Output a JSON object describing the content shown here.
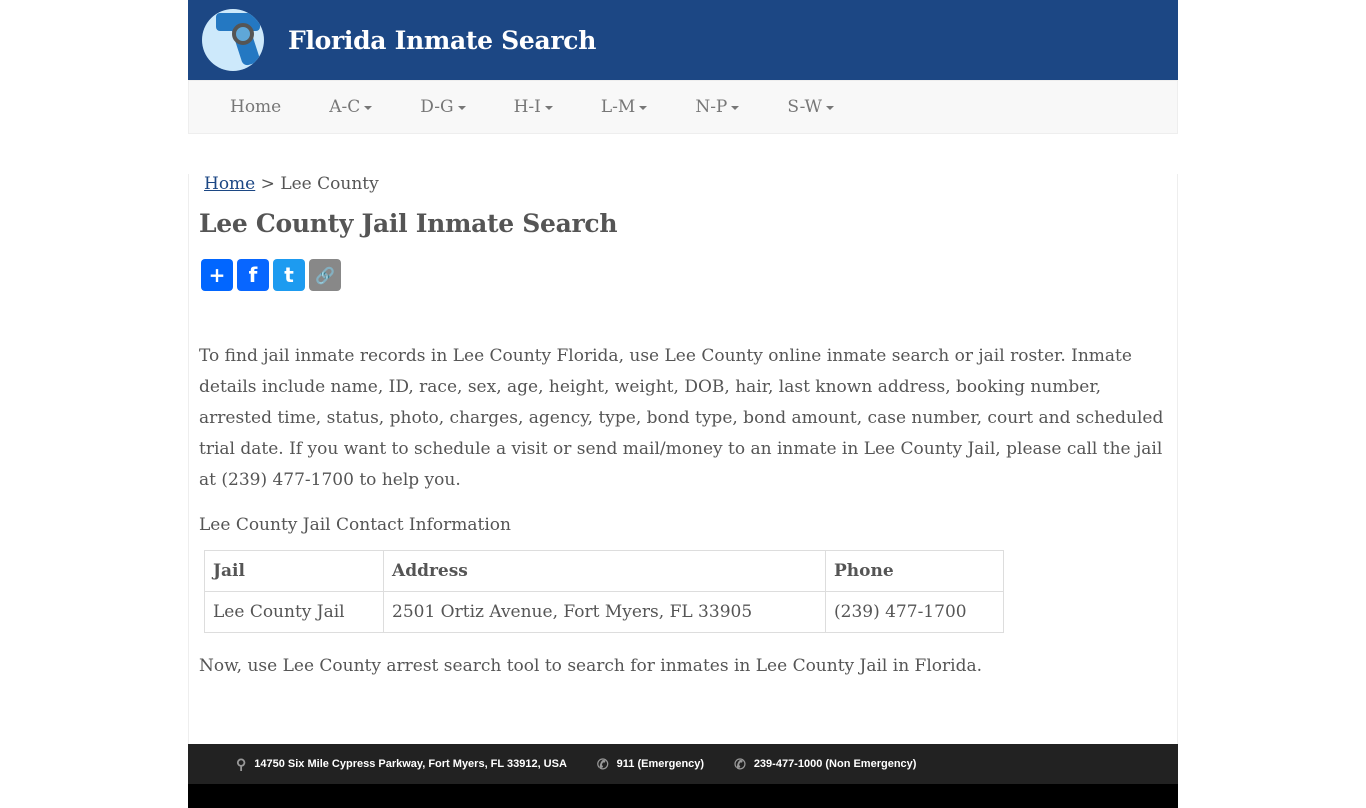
{
  "header": {
    "title": "Florida Inmate Search"
  },
  "nav": [
    {
      "label": "Home"
    },
    {
      "label": "A-C"
    },
    {
      "label": "D-G"
    },
    {
      "label": "H-I"
    },
    {
      "label": "L-M"
    },
    {
      "label": "N-P"
    },
    {
      "label": "S-W"
    }
  ],
  "breadcrumb": {
    "home": "Home",
    "sep": " > ",
    "current": "Lee County"
  },
  "page_title": "Lee County Jail Inmate Search",
  "share": [
    {
      "icon": "share-icon",
      "glyph": "+",
      "color": "#0166ff"
    },
    {
      "icon": "facebook-icon",
      "glyph": "f",
      "color": "#0866ff"
    },
    {
      "icon": "twitter-icon",
      "glyph": "t",
      "color": "#1d9bf0"
    },
    {
      "icon": "copy-link-icon",
      "glyph": "🔗",
      "color": "#888"
    }
  ],
  "intro": "To find jail inmate records in Lee County Florida, use Lee County online inmate search or jail roster. Inmate details include name, ID, race, sex, age, height, weight, DOB, hair, last known address, booking number, arrested time, status, photo, charges, agency, type, bond type, bond amount, case number, court and scheduled trial date. If you want to schedule a visit or send mail/money to an inmate in Lee County Jail, please call the jail at (239) 477-1700 to help you.",
  "contact_heading": "Lee County Jail Contact Information",
  "table": {
    "headers": [
      "Jail",
      "Address",
      "Phone"
    ],
    "rows": [
      [
        "Lee County Jail",
        "2501 Ortiz Avenue, Fort Myers, FL 33905",
        "(239) 477-1700"
      ]
    ]
  },
  "now": "Now, use Lee County arrest search tool to search for inmates in Lee County Jail in Florida.",
  "footer": {
    "address": "14750 Six Mile Cypress Parkway, Fort Myers, FL 33912, USA",
    "emergency": "911 (Emergency)",
    "non_emergency": "239-477-1000 (Non Emergency)"
  }
}
